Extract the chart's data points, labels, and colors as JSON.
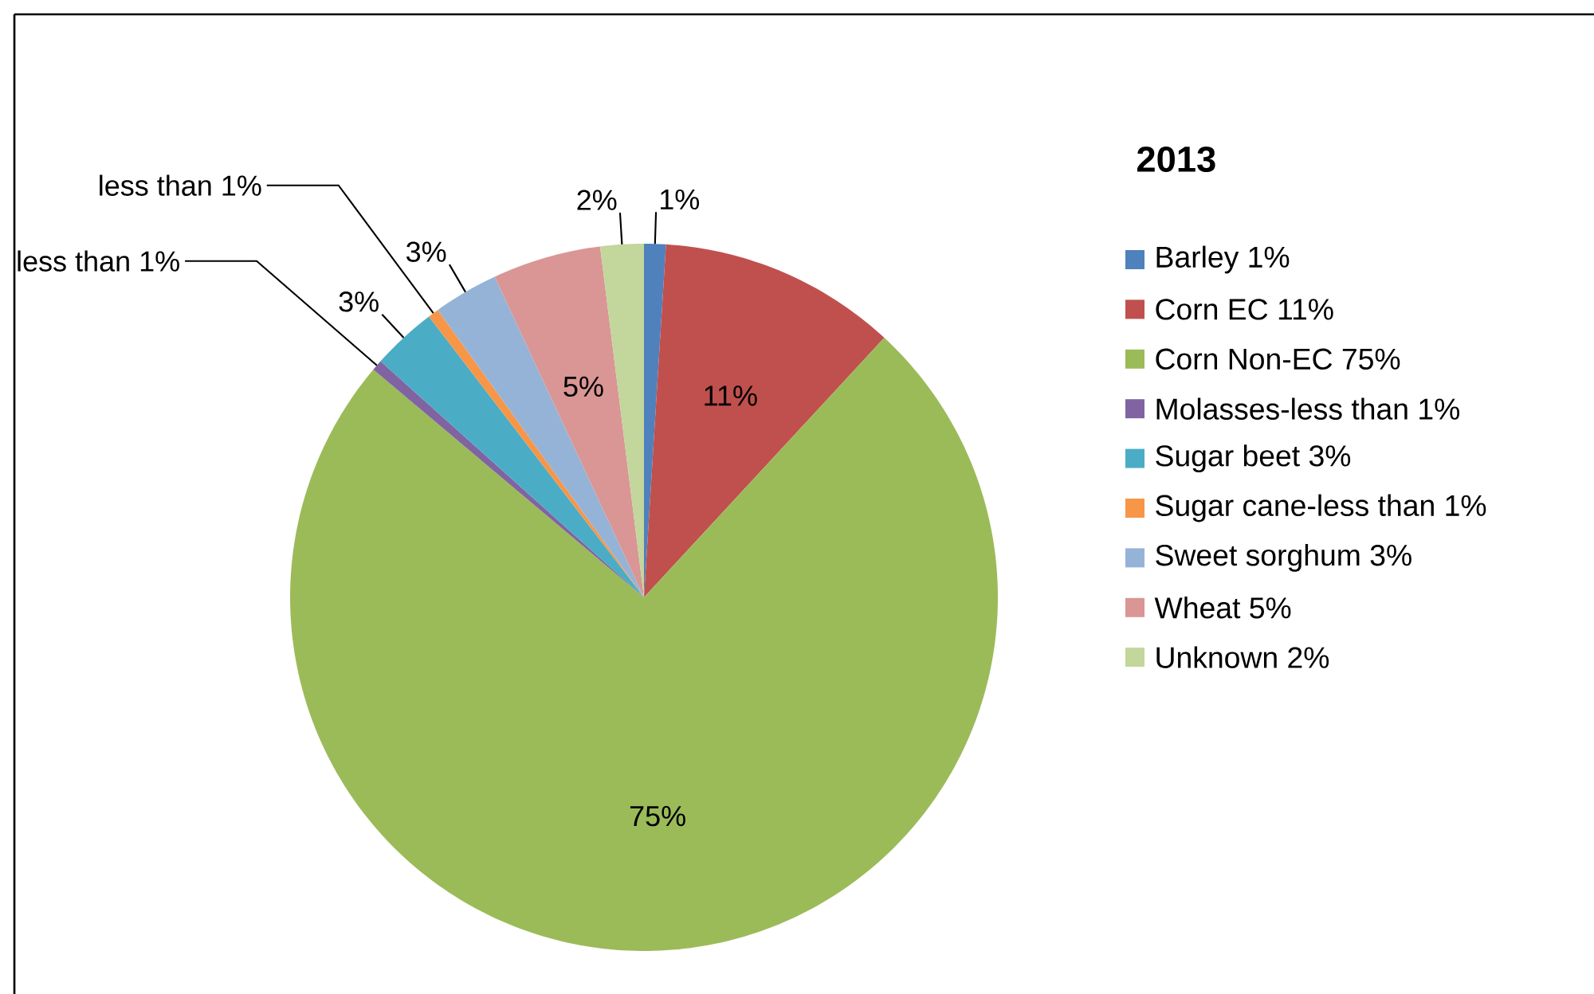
{
  "chart_data": {
    "type": "pie",
    "legend_title": "2013",
    "legend": "right",
    "categories": [
      "Barley 1%",
      "Corn EC 11%",
      "Corn Non-EC 75%",
      "Molasses-less than 1%",
      "Sugar beet 3%",
      "Sugar cane-less than 1%",
      "Sweet sorghum 3%",
      "Wheat 5%",
      "Unknown 2%"
    ],
    "values": [
      1,
      11,
      75,
      0.5,
      3,
      0.5,
      3,
      5,
      2
    ],
    "value_labels": [
      "1%",
      "11%",
      "75%",
      "less than 1%",
      "3%",
      "less than  1%",
      "3%",
      "5%",
      "2%"
    ],
    "colors": [
      "#4f81bd",
      "#c0504d",
      "#9bbb59",
      "#8064a2",
      "#4bacc6",
      "#f79646",
      "#95b3d7",
      "#d99694",
      "#c3d69b"
    ]
  }
}
